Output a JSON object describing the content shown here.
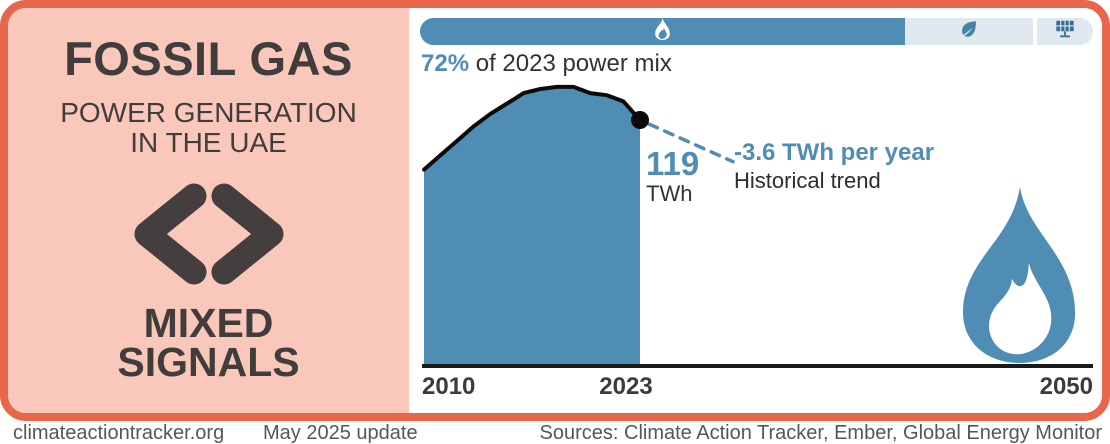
{
  "left_panel": {
    "title": "FOSSIL GAS",
    "subtitle_line1": "POWER GENERATION",
    "subtitle_line2": "IN THE UAE",
    "verdict_line1": "MIXED",
    "verdict_line2": "SIGNALS",
    "verdict_icon": "mixed-signals-chevrons-icon"
  },
  "power_mix_bar": {
    "segments": [
      {
        "id": "fossil-gas",
        "icon": "flame-icon",
        "share_pct": 72
      },
      {
        "id": "renewables",
        "icon": "leaf-icon",
        "share_pct": 19.7
      },
      {
        "id": "solar",
        "icon": "solar-panel-icon",
        "share_pct": 8.3
      }
    ]
  },
  "caption": {
    "pct": "72%",
    "rest": " of 2023 power mix"
  },
  "chart_data": {
    "type": "area",
    "title": "Fossil gas power generation in the UAE",
    "x_ticks": [
      "2010",
      "2023",
      "2050"
    ],
    "x_range": [
      2010,
      2050
    ],
    "years": [
      2010,
      2011,
      2012,
      2013,
      2014,
      2015,
      2016,
      2017,
      2018,
      2019,
      2020,
      2021,
      2022,
      2023
    ],
    "values_twh_estimated": [
      95,
      102,
      109,
      116,
      122,
      127,
      132,
      134,
      135,
      135,
      132,
      131,
      128,
      119
    ],
    "point_label": {
      "year": 2023,
      "value": 119,
      "unit": "TWh"
    },
    "trend": {
      "rate_twh_per_year": -3.6,
      "rate_label": "-3.6 TWh per year",
      "name": "Historical trend"
    },
    "ylim": [
      0,
      141
    ],
    "grid": false,
    "legend": "none"
  },
  "annotations": {
    "value_label": "119",
    "value_unit": "TWh",
    "trend_value": "-3.6 TWh per year",
    "trend_label": "Historical trend"
  },
  "footer": {
    "site": "climateactiontracker.org",
    "update": "May 2025 update",
    "sources": "Sources: Climate Action Tracker, Ember, Global Energy Monitor"
  },
  "colors": {
    "accent_orange": "#E8664A",
    "panel_pink": "#F9C8BA",
    "steel_blue": "#4F8DB5",
    "light_blue": "#DFE9EF",
    "dark_text": "#423D3D",
    "footer_gray": "#54565B",
    "line_black": "#0B0B0B"
  }
}
